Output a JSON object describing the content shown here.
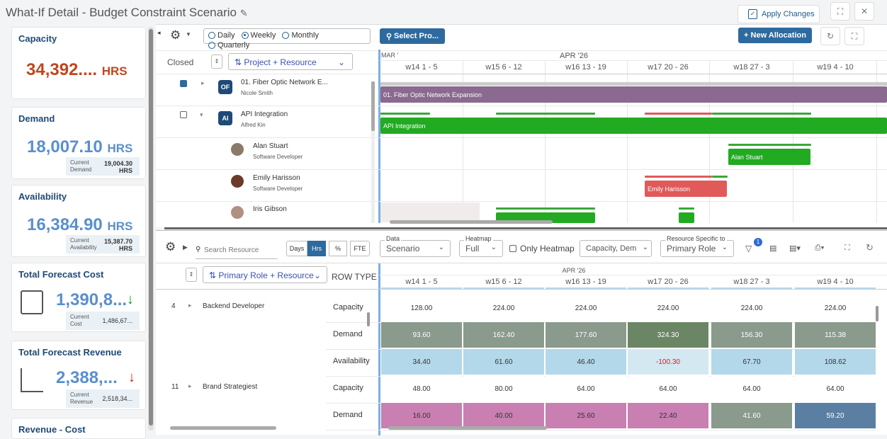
{
  "header": {
    "title": "What-If Detail - Budget Constraint Scenario",
    "apply_label": "Apply Changes"
  },
  "cards": {
    "capacity": {
      "title": "Capacity",
      "value": "34,392....",
      "unit": "HRS",
      "color": "#c0461e"
    },
    "demand": {
      "title": "Demand",
      "value": "18,007.10",
      "unit": "HRS",
      "sub_label_1": "Current",
      "sub_label_2": "Demand",
      "sub_value": "19,004.30",
      "sub_unit": "HRS"
    },
    "availability": {
      "title": "Availability",
      "value": "16,384.90",
      "unit": "HRS",
      "sub_label_1": "Current",
      "sub_label_2": "Availability",
      "sub_value": "15,387.70",
      "sub_unit": "HRS"
    },
    "cost": {
      "title": "Total Forecast Cost",
      "value": "1,390,8...",
      "sub_label_1": "Current",
      "sub_label_2": "Cost",
      "sub_value": "1,486,67..."
    },
    "revenue": {
      "title": "Total Forecast Revenue",
      "value": "2,388,...",
      "sub_label_1": "Current",
      "sub_label_2": "Revenue",
      "sub_value": "2,518,34..."
    },
    "rev_cost": {
      "title": "Revenue - Cost"
    }
  },
  "top": {
    "radios": [
      "Daily",
      "Weekly",
      "Monthly",
      "Quarterly"
    ],
    "selected_radio": "Weekly",
    "select_project": "Select Pro...",
    "new_allocation": "+ New Allocation",
    "closed_label": "Closed",
    "group_by": "Project + Resource",
    "month_left": "MAR '",
    "month": "APR '26",
    "weeks": [
      "w14 1 - 5",
      "w15 6 - 12",
      "w16 13 - 19",
      "w17 20 - 26",
      "w18 27 - 3",
      "w19 4 - 10"
    ],
    "rows": [
      {
        "name": "01. Fiber Optic Network E...",
        "sub": "Nicole Smith",
        "badge": "OF",
        "bar": "01. Fiber Optic Network Expansion"
      },
      {
        "name": "API Integration",
        "sub": "Alfred Kin",
        "badge": "AI",
        "bar": "API Integration"
      },
      {
        "name": "Alan Stuart",
        "sub": "Software Developer",
        "bar": "Alan Stuart"
      },
      {
        "name": "Emily Harisson",
        "sub": "Software Developer",
        "bar": "Emily Harisson"
      },
      {
        "name": "Iris Gibson",
        "sub": ""
      }
    ]
  },
  "bottom": {
    "search_placeholder": "Search Resource",
    "units": [
      "Days",
      "Hrs",
      "%",
      "FTE"
    ],
    "selected_unit": "Hrs",
    "data_legend": "Data",
    "data_value": "Scenario",
    "heatmap_legend": "Heatmap",
    "heatmap_value": "Full",
    "only_heatmap": "Only Heatmap",
    "capacity_select": "Capacity, Dem",
    "resource_legend": "Resource Specific to",
    "resource_value": "Primary Role",
    "filter_count": "1",
    "group_by": "Primary Role + Resource",
    "row_type_header": "ROW TYPE",
    "month": "APR '26",
    "weeks": [
      "w14 1 - 5",
      "w15 6 - 12",
      "w16 13 - 19",
      "w17 20 - 26",
      "w18 27 - 3",
      "w19 4 - 10"
    ],
    "groups": [
      {
        "id": "4",
        "name": "Backend Developer",
        "rows": [
          {
            "type": "Capacity",
            "values": [
              "128.00",
              "224.00",
              "224.00",
              "224.00",
              "224.00",
              "224.00"
            ]
          },
          {
            "type": "Demand",
            "values": [
              "93.60",
              "162.40",
              "177.60",
              "324.30",
              "156.30",
              "115.38"
            ]
          },
          {
            "type": "Availability",
            "values": [
              "34.40",
              "61.60",
              "46.40",
              "-100.30",
              "67.70",
              "108.62"
            ]
          }
        ]
      },
      {
        "id": "11",
        "name": "Brand Strategiest",
        "rows": [
          {
            "type": "Capacity",
            "values": [
              "48.00",
              "80.00",
              "64.00",
              "64.00",
              "64.00",
              "64.00"
            ]
          },
          {
            "type": "Demand",
            "values": [
              "16.00",
              "40.00",
              "25.60",
              "22.40",
              "41.60",
              "59.20"
            ]
          }
        ]
      }
    ]
  }
}
